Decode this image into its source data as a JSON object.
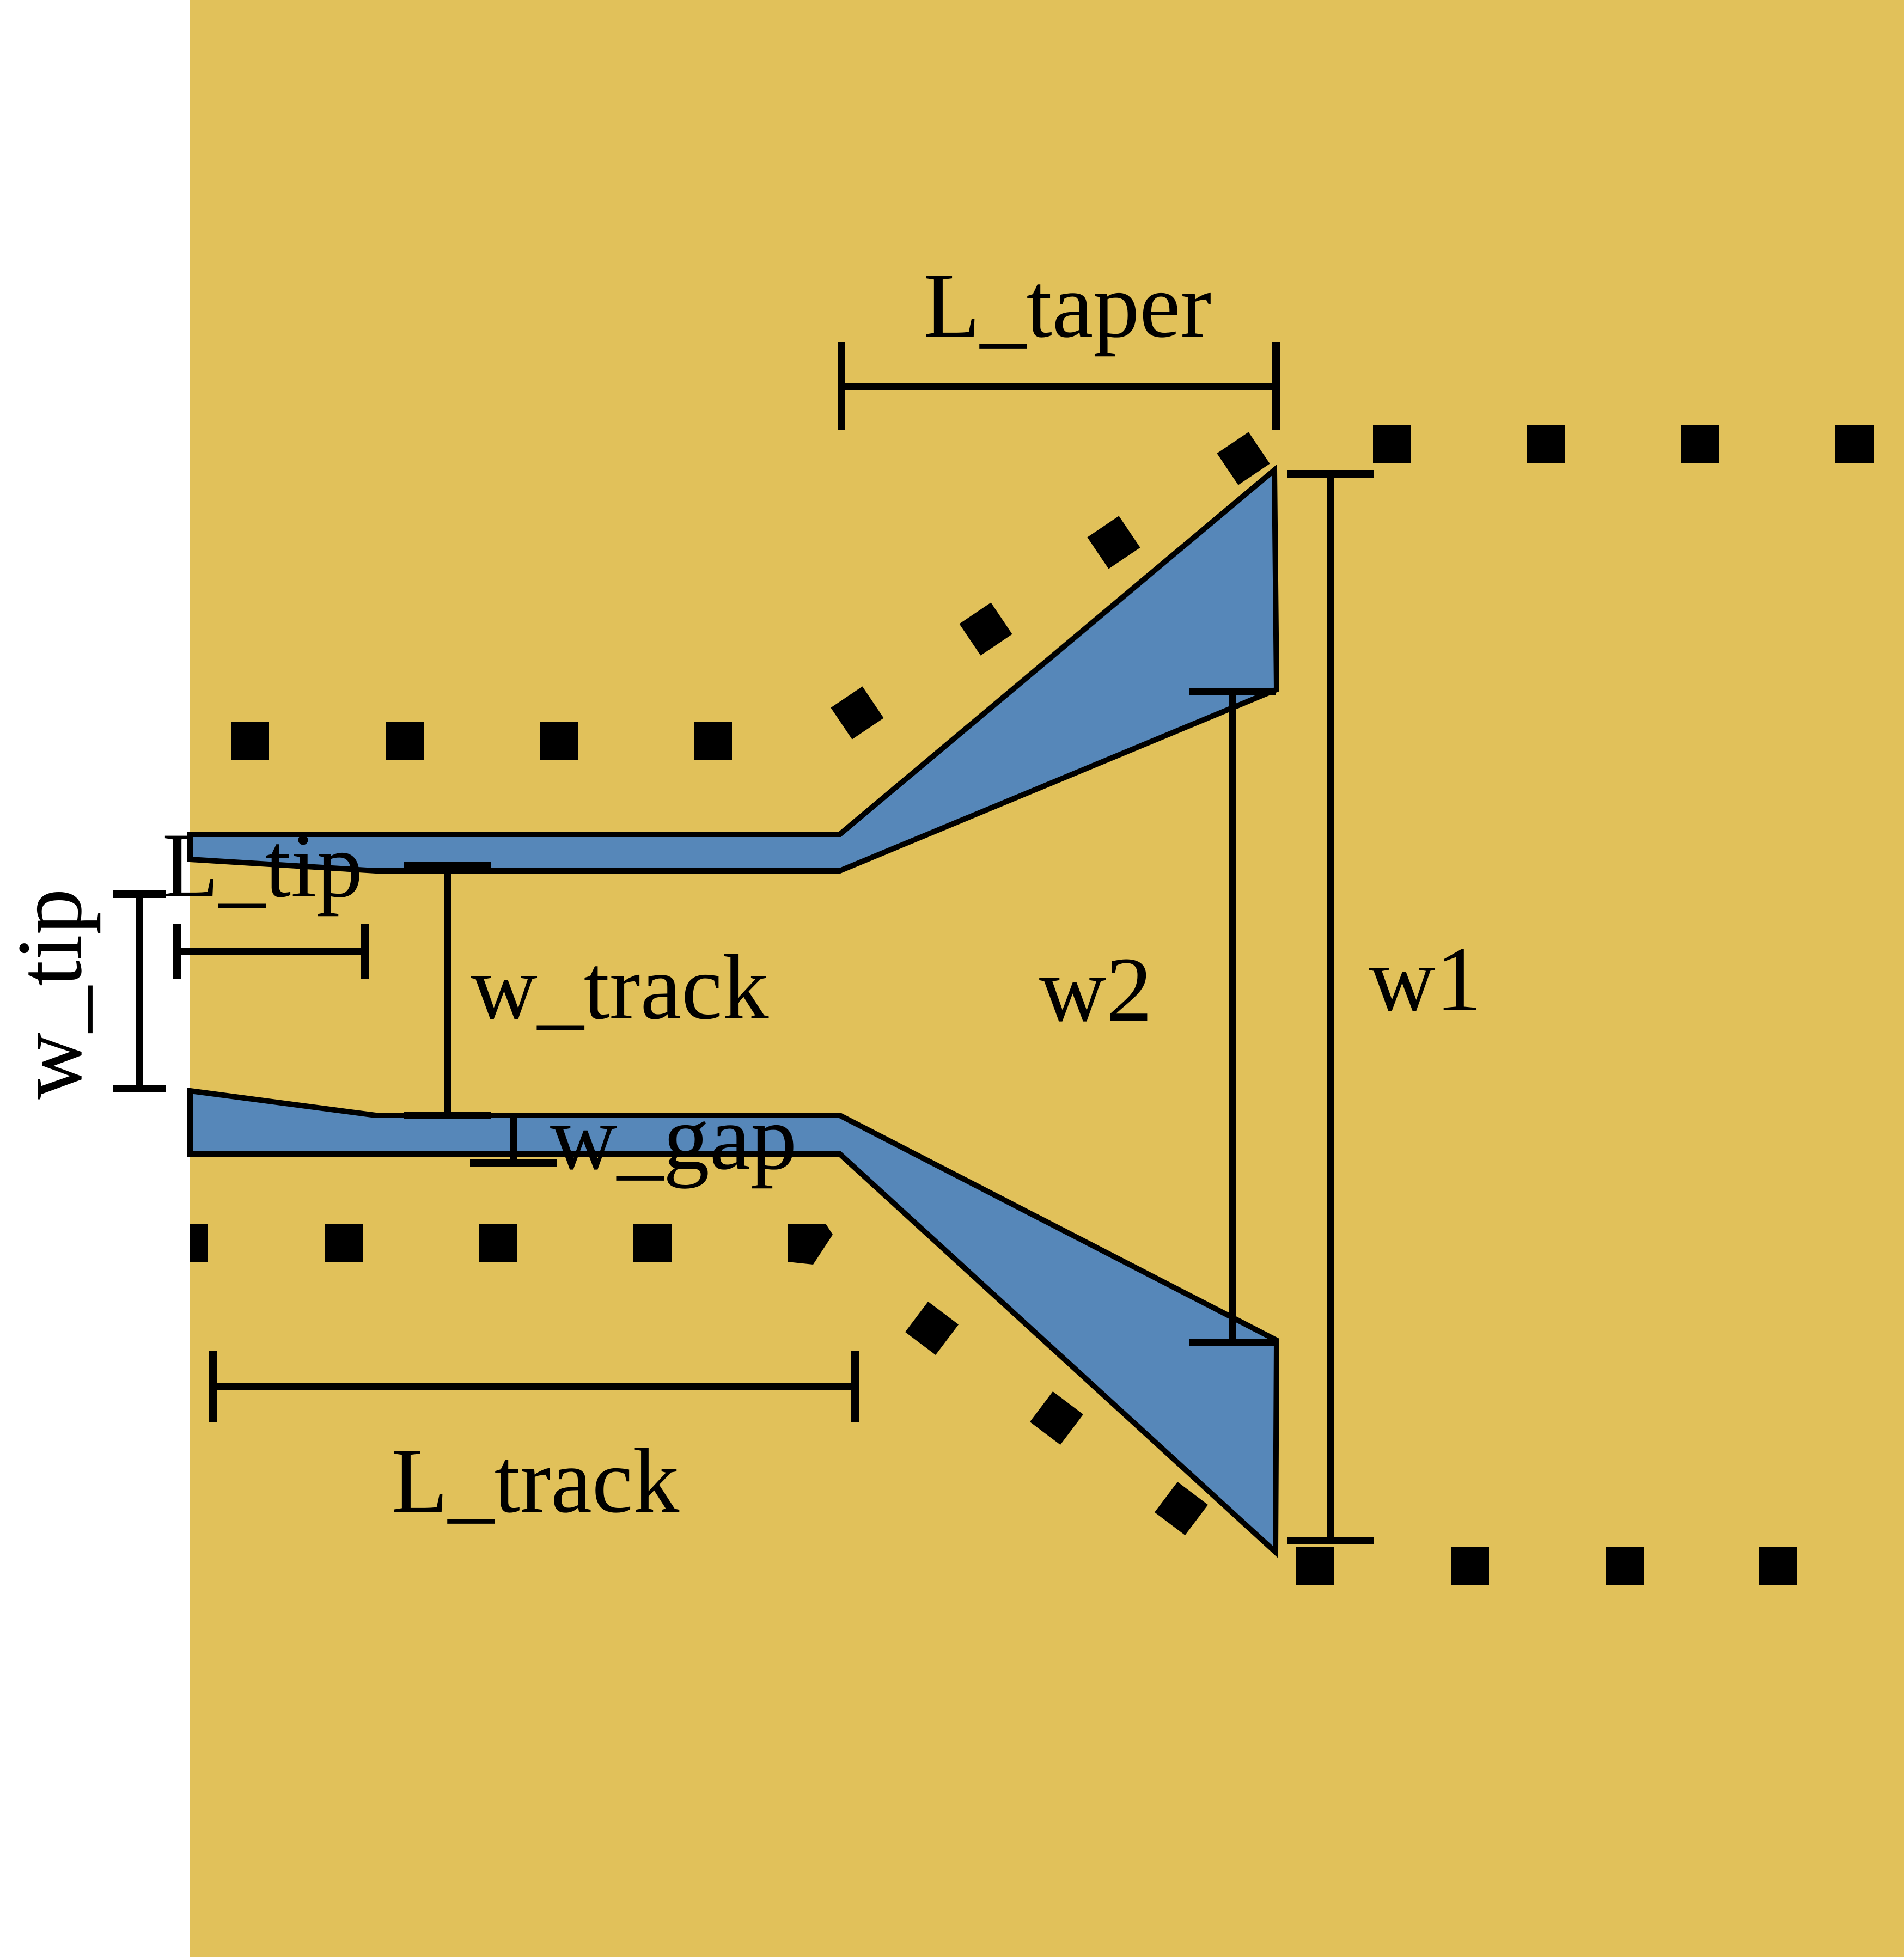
{
  "colors": {
    "substrate": "#E1C15A",
    "conductor": "#5687B9",
    "outline": "#000000",
    "background": "#FFFFFF"
  },
  "labels": {
    "L_taper": "L_taper",
    "L_tip": "L_tip",
    "w_tip": "w_tip",
    "w_track": "w_track",
    "w2": "w2",
    "w1": "w1",
    "w_gap": "w_gap",
    "L_track": "L_track"
  }
}
